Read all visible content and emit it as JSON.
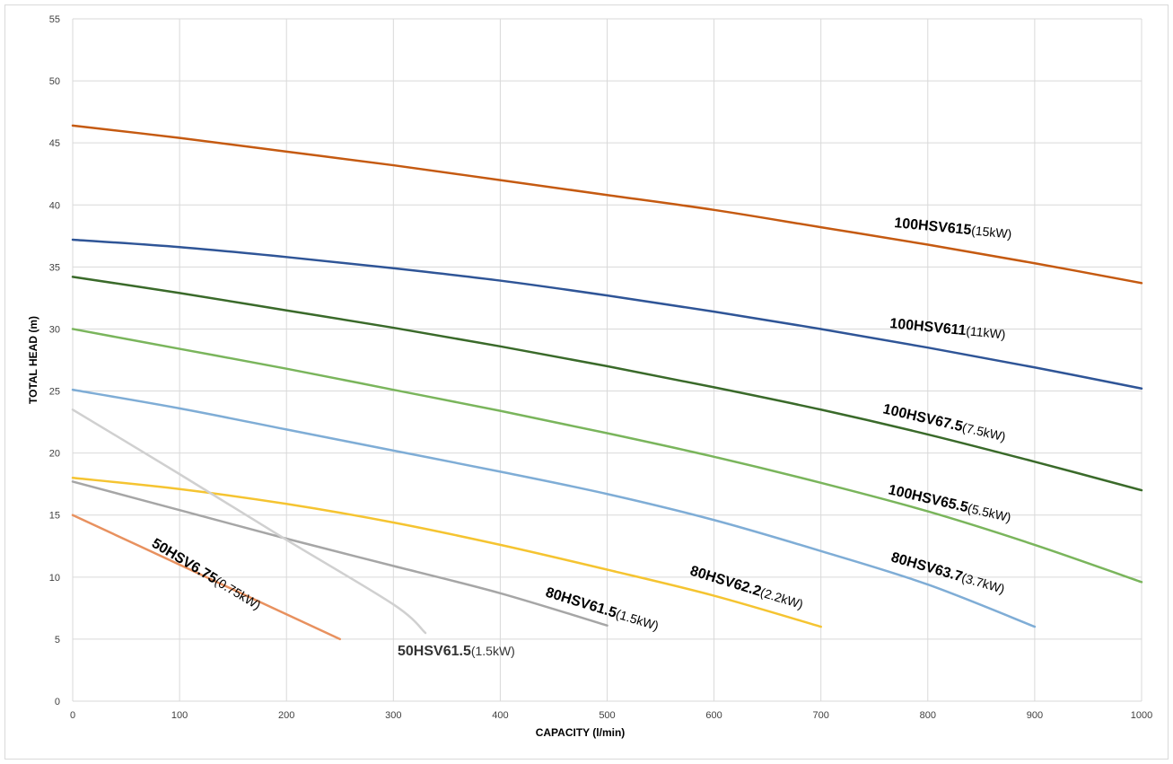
{
  "chart_data": {
    "type": "line",
    "title": "",
    "xlabel": "CAPACITY (l/min)",
    "ylabel": "TOTAL HEAD (m)",
    "xlim": [
      0,
      1000
    ],
    "ylim": [
      0,
      55
    ],
    "x_ticks": [
      "0",
      "100",
      "200",
      "300",
      "400",
      "500",
      "600",
      "700",
      "800",
      "900",
      "1000"
    ],
    "y_ticks": [
      "0",
      "5",
      "10",
      "15",
      "20",
      "25",
      "30",
      "35",
      "40",
      "45",
      "50",
      "55"
    ],
    "grid": true,
    "legend": "none (inline curve labels)",
    "series": [
      {
        "model": "100HSV615",
        "power": "(15kW)",
        "color": "#c55a11",
        "x": [
          0,
          100,
          200,
          300,
          400,
          500,
          600,
          700,
          800,
          900,
          1000
        ],
        "y": [
          46.4,
          45.4,
          44.3,
          43.2,
          42.0,
          40.8,
          39.6,
          38.2,
          36.8,
          35.3,
          33.7
        ]
      },
      {
        "model": "100HSV611",
        "power": "(11kW)",
        "color": "#2f5597",
        "x": [
          0,
          100,
          200,
          300,
          400,
          500,
          600,
          700,
          800,
          900,
          1000
        ],
        "y": [
          37.2,
          36.6,
          35.8,
          34.9,
          33.9,
          32.7,
          31.4,
          30.0,
          28.5,
          26.9,
          25.2
        ]
      },
      {
        "model": "100HSV67.5",
        "power": "(7.5kW)",
        "color": "#3a6a2a",
        "x": [
          0,
          100,
          200,
          300,
          400,
          500,
          600,
          700,
          800,
          900,
          1000
        ],
        "y": [
          34.2,
          32.9,
          31.5,
          30.1,
          28.6,
          27.0,
          25.3,
          23.5,
          21.5,
          19.3,
          17.0
        ]
      },
      {
        "model": "100HSV65.5",
        "power": "(5.5kW)",
        "color": "#7ab55c",
        "x": [
          0,
          100,
          200,
          300,
          400,
          500,
          600,
          700,
          800,
          900,
          1000
        ],
        "y": [
          30.0,
          28.4,
          26.8,
          25.1,
          23.4,
          21.6,
          19.7,
          17.6,
          15.3,
          12.6,
          9.6
        ]
      },
      {
        "model": "80HSV63.7",
        "power": "(3.7kW)",
        "color": "#7fadd6",
        "x": [
          0,
          100,
          200,
          300,
          400,
          500,
          600,
          700,
          800,
          900
        ],
        "y": [
          25.1,
          23.6,
          21.9,
          20.2,
          18.5,
          16.7,
          14.6,
          12.1,
          9.4,
          6.0
        ]
      },
      {
        "model": "80HSV62.2",
        "power": "(2.2kW)",
        "color": "#f5c431",
        "x": [
          0,
          100,
          200,
          300,
          400,
          500,
          600,
          700
        ],
        "y": [
          18.0,
          17.1,
          15.9,
          14.4,
          12.6,
          10.6,
          8.5,
          6.0
        ]
      },
      {
        "model": "80HSV61.5",
        "power": "(1.5kW)",
        "color": "#a6a6a6",
        "x": [
          0,
          100,
          200,
          300,
          400,
          500
        ],
        "y": [
          17.7,
          15.4,
          13.1,
          10.9,
          8.7,
          6.1
        ]
      },
      {
        "model": "50HSV61.5",
        "power": "(1.5kW)",
        "color": "#d0d0d0",
        "x": [
          0,
          100,
          200,
          300,
          330
        ],
        "y": [
          23.5,
          18.3,
          13.0,
          7.8,
          5.5
        ]
      },
      {
        "model": "50HSV6.75",
        "power": "(0.75kW)",
        "color": "#e8915f",
        "x": [
          0,
          100,
          200,
          250
        ],
        "y": [
          15.0,
          11.0,
          7.0,
          5.0
        ]
      }
    ]
  }
}
